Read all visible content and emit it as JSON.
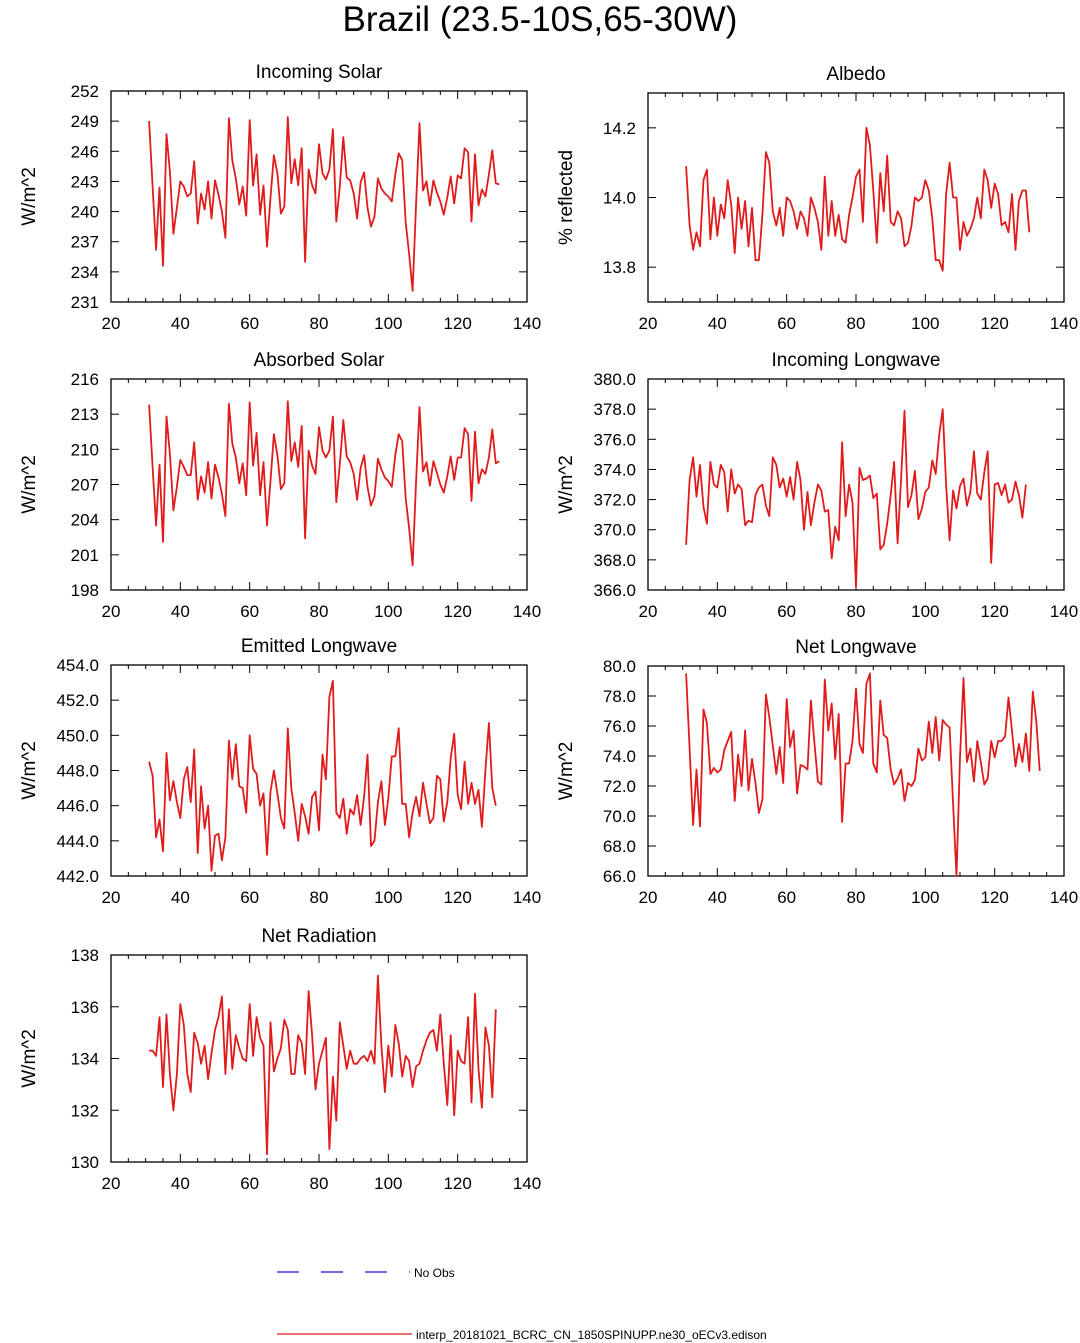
{
  "figure_title": "Brazil (23.5-10S,65-30W)",
  "legend": {
    "entries": [
      {
        "label": "No Obs",
        "color": "#1a1acc",
        "style": "dashed"
      },
      {
        "label": "interp_20181021_BCRC_CN_1850SPINUPP.ne30_oECv3.edison",
        "color": "#e01b1b",
        "style": "solid"
      }
    ]
  },
  "colors": {
    "series": "#e01b1b",
    "obs": "#1a1acc"
  },
  "chart_data": [
    {
      "type": "line",
      "title": "Incoming Solar",
      "xlabel": "",
      "ylabel": "W/m^2",
      "xlim": [
        20,
        140
      ],
      "ylim": [
        231,
        252
      ],
      "xticks": [
        20,
        40,
        60,
        80,
        100,
        120,
        140
      ],
      "yticks": [
        231,
        234,
        237,
        240,
        243,
        246,
        249,
        252
      ],
      "ytick_decimals": 0,
      "series": [
        {
          "name": "interp_20181021_BCRC_CN_1850SPINUPP.ne30_oECv3.edison",
          "x_start": 31,
          "values": [
            249.0,
            242.5,
            236.2,
            242.4,
            234.6,
            247.7,
            244.0,
            237.8,
            240.4,
            243.0,
            242.5,
            241.5,
            241.8,
            245.0,
            238.8,
            241.8,
            240.2,
            243.0,
            239.3,
            243.1,
            241.7,
            240.0,
            237.4,
            249.3,
            245.1,
            243.3,
            240.7,
            242.5,
            239.6,
            249.1,
            242.6,
            245.7,
            239.7,
            242.6,
            236.5,
            241.4,
            245.6,
            243.8,
            239.8,
            240.5,
            249.4,
            242.8,
            245.2,
            242.6,
            246.3,
            235.0,
            244.2,
            242.6,
            241.8,
            246.7,
            243.8,
            243.2,
            244.2,
            248.2,
            239.0,
            242.5,
            247.4,
            243.4,
            243.1,
            241.8,
            239.3,
            242.9,
            243.9,
            240.4,
            238.5,
            239.5,
            243.3,
            242.3,
            241.8,
            241.5,
            241.0,
            243.7,
            245.8,
            245.1,
            238.9,
            235.8,
            232.1,
            240.8,
            248.8,
            242.1,
            243.0,
            240.6,
            243.1,
            241.9,
            241.0,
            239.7,
            241.4,
            243.5,
            240.8,
            243.6,
            243.3,
            246.3,
            245.9,
            239.0,
            245.7,
            240.6,
            242.2,
            241.5,
            243.7,
            246.1,
            242.8,
            242.7
          ]
        }
      ]
    },
    {
      "type": "line",
      "title": "Albedo",
      "xlabel": "",
      "ylabel": "% reflected",
      "xlim": [
        20,
        140
      ],
      "ylim": [
        13.7,
        14.3
      ],
      "xticks": [
        20,
        40,
        60,
        80,
        100,
        120,
        140
      ],
      "yticks": [
        13.8,
        14.0,
        14.2
      ],
      "ytick_decimals": 1,
      "series": [
        {
          "name": "interp_20181021_BCRC_CN_1850SPINUPP.ne30_oECv3.edison",
          "x_start": 31,
          "values": [
            14.09,
            13.92,
            13.85,
            13.9,
            13.86,
            14.05,
            14.08,
            13.88,
            14.0,
            13.89,
            13.98,
            13.94,
            14.05,
            13.98,
            13.84,
            14.0,
            13.91,
            13.99,
            13.86,
            13.97,
            13.82,
            13.82,
            13.95,
            14.13,
            14.1,
            13.96,
            13.92,
            13.97,
            13.89,
            14.0,
            13.99,
            13.96,
            13.91,
            13.96,
            13.94,
            13.89,
            14.0,
            13.97,
            13.93,
            13.85,
            14.06,
            13.89,
            13.99,
            13.89,
            13.95,
            13.88,
            13.87,
            13.95,
            14.0,
            14.06,
            14.08,
            13.93,
            14.2,
            14.15,
            14.02,
            13.87,
            14.07,
            13.96,
            14.12,
            13.93,
            13.92,
            13.96,
            13.94,
            13.86,
            13.87,
            13.92,
            14.0,
            13.99,
            14.0,
            14.05,
            14.02,
            13.94,
            13.82,
            13.82,
            13.79,
            14.01,
            14.1,
            14.0,
            14.0,
            13.85,
            13.93,
            13.89,
            13.91,
            13.94,
            14.0,
            13.94,
            14.08,
            14.05,
            13.97,
            14.04,
            14.01,
            13.92,
            13.93,
            13.9,
            14.01,
            13.85,
            13.99,
            14.02,
            14.02,
            13.9
          ]
        }
      ]
    },
    {
      "type": "line",
      "title": "Absorbed Solar",
      "xlabel": "",
      "ylabel": "W/m^2",
      "xlim": [
        20,
        140
      ],
      "ylim": [
        198,
        216
      ],
      "xticks": [
        20,
        40,
        60,
        80,
        100,
        120,
        140
      ],
      "yticks": [
        198,
        201,
        204,
        207,
        210,
        213,
        216
      ],
      "ytick_decimals": 0,
      "series": [
        {
          "name": "interp_20181021_BCRC_CN_1850SPINUPP.ne30_oECv3.edison",
          "x_start": 31,
          "values": [
            213.8,
            208.5,
            203.5,
            208.7,
            202.1,
            212.8,
            209.6,
            204.8,
            206.8,
            209.1,
            208.5,
            207.8,
            207.8,
            210.6,
            205.7,
            207.7,
            206.3,
            208.9,
            205.8,
            208.7,
            207.6,
            206.2,
            204.3,
            213.9,
            210.5,
            209.3,
            207.1,
            208.8,
            206.1,
            214.0,
            208.6,
            211.4,
            206.1,
            208.9,
            203.5,
            207.3,
            211.3,
            209.5,
            206.6,
            207.1,
            214.1,
            209.0,
            210.6,
            208.5,
            212.0,
            202.4,
            209.9,
            208.6,
            207.9,
            211.9,
            209.9,
            209.3,
            209.9,
            212.8,
            205.5,
            208.7,
            212.5,
            209.4,
            208.9,
            207.9,
            205.7,
            208.4,
            209.5,
            206.8,
            205.2,
            206.0,
            209.2,
            208.3,
            207.6,
            207.3,
            206.8,
            209.5,
            211.3,
            210.7,
            205.8,
            203.3,
            200.1,
            207.3,
            213.6,
            208.1,
            208.9,
            206.9,
            209.0,
            208.0,
            207.0,
            206.3,
            207.7,
            209.4,
            207.4,
            209.3,
            209.3,
            211.8,
            211.3,
            205.6,
            211.5,
            207.1,
            208.3,
            207.9,
            209.3,
            211.7,
            208.8,
            209.0
          ]
        }
      ]
    },
    {
      "type": "line",
      "title": "Incoming Longwave",
      "xlabel": "",
      "ylabel": "W/m^2",
      "xlim": [
        20,
        140
      ],
      "ylim": [
        366,
        380
      ],
      "xticks": [
        20,
        40,
        60,
        80,
        100,
        120,
        140
      ],
      "yticks": [
        366,
        368,
        370,
        372,
        374,
        376,
        378,
        380
      ],
      "ytick_decimals": 1,
      "series": [
        {
          "name": "interp_20181021_BCRC_CN_1850SPINUPP.ne30_oECv3.edison",
          "x_start": 31,
          "values": [
            369.0,
            373.3,
            374.8,
            372.2,
            374.3,
            371.5,
            370.4,
            374.5,
            373.0,
            372.8,
            374.3,
            373.8,
            371.2,
            374.0,
            372.4,
            373.0,
            372.7,
            370.3,
            370.6,
            370.5,
            372.3,
            372.8,
            373.0,
            371.6,
            370.9,
            374.8,
            374.3,
            372.8,
            373.4,
            372.2,
            373.5,
            372.0,
            374.5,
            373.3,
            370.0,
            372.5,
            370.3,
            371.8,
            373.0,
            372.6,
            371.2,
            371.3,
            368.1,
            370.2,
            369.3,
            375.8,
            370.9,
            373.0,
            371.8,
            366.2,
            374.1,
            373.3,
            373.4,
            373.6,
            372.1,
            372.4,
            368.7,
            369.0,
            370.4,
            372.3,
            374.5,
            369.1,
            373.4,
            377.9,
            371.5,
            372.3,
            373.9,
            370.7,
            371.4,
            372.5,
            372.8,
            374.6,
            373.7,
            376.3,
            378.0,
            373.0,
            369.3,
            372.6,
            371.4,
            372.9,
            373.4,
            371.6,
            372.5,
            375.2,
            372.4,
            372.0,
            373.8,
            375.2,
            367.8,
            373.0,
            373.1,
            372.3,
            373.0,
            371.8,
            372.0,
            373.2,
            372.3,
            370.8,
            373.0
          ]
        }
      ]
    },
    {
      "type": "line",
      "title": "Emitted Longwave",
      "xlabel": "",
      "ylabel": "W/m^2",
      "xlim": [
        20,
        140
      ],
      "ylim": [
        442,
        454
      ],
      "xticks": [
        20,
        40,
        60,
        80,
        100,
        120,
        140
      ],
      "yticks": [
        442,
        444,
        446,
        448,
        450,
        452,
        454
      ],
      "ytick_decimals": 1,
      "series": [
        {
          "name": "interp_20181021_BCRC_CN_1850SPINUPP.ne30_oECv3.edison",
          "x_start": 31,
          "values": [
            448.5,
            447.7,
            444.2,
            445.2,
            443.4,
            449.0,
            446.3,
            447.4,
            446.2,
            445.3,
            447.5,
            448.2,
            446.2,
            449.2,
            443.3,
            447.1,
            444.7,
            446.0,
            442.3,
            444.3,
            444.4,
            442.9,
            444.2,
            449.7,
            447.5,
            449.5,
            447.1,
            447.0,
            445.6,
            450.0,
            448.1,
            447.8,
            446.0,
            446.7,
            443.2,
            446.8,
            448.0,
            446.7,
            445.3,
            444.7,
            450.4,
            447.0,
            445.6,
            444.0,
            446.1,
            445.4,
            444.4,
            446.5,
            446.8,
            444.6,
            448.9,
            447.5,
            452.2,
            453.1,
            445.6,
            445.3,
            446.4,
            444.4,
            445.8,
            445.5,
            446.6,
            444.9,
            446.5,
            448.9,
            443.7,
            444.0,
            446.2,
            447.4,
            444.9,
            446.4,
            448.8,
            448.8,
            450.4,
            446.1,
            446.1,
            444.2,
            445.6,
            446.5,
            445.4,
            447.3,
            446.1,
            445.0,
            445.3,
            447.7,
            447.5,
            445.1,
            446.2,
            448.7,
            450.1,
            446.6,
            445.8,
            448.5,
            446.1,
            447.3,
            446.1,
            446.9,
            444.8,
            448.0,
            450.7,
            447.0,
            446.0
          ]
        }
      ]
    },
    {
      "type": "line",
      "title": "Net Longwave",
      "xlabel": "",
      "ylabel": "W/m^2",
      "xlim": [
        20,
        140
      ],
      "ylim": [
        66,
        80
      ],
      "xticks": [
        20,
        40,
        60,
        80,
        100,
        120,
        140
      ],
      "yticks": [
        66,
        68,
        70,
        72,
        74,
        76,
        78,
        80
      ],
      "ytick_decimals": 1,
      "series": [
        {
          "name": "interp_20181021_BCRC_CN_1850SPINUPP.ne30_oECv3.edison",
          "x_start": 31,
          "values": [
            79.5,
            74.5,
            69.4,
            73.1,
            69.3,
            77.1,
            76.2,
            72.8,
            73.2,
            72.9,
            73.1,
            74.4,
            75.0,
            75.6,
            71.0,
            74.1,
            72.0,
            75.7,
            71.7,
            73.8,
            72.2,
            70.2,
            71.1,
            78.1,
            76.6,
            74.7,
            72.8,
            74.6,
            72.2,
            77.8,
            74.6,
            75.7,
            71.5,
            73.4,
            73.3,
            73.1,
            77.7,
            74.9,
            72.3,
            72.1,
            79.1,
            75.7,
            77.5,
            73.8,
            76.8,
            69.6,
            73.5,
            73.5,
            75.0,
            78.5,
            74.8,
            74.2,
            78.8,
            79.5,
            73.5,
            72.9,
            77.7,
            75.4,
            75.2,
            73.1,
            72.1,
            72.5,
            73.1,
            71.0,
            72.2,
            72.0,
            72.4,
            74.5,
            73.7,
            73.9,
            76.3,
            74.2,
            76.6,
            73.7,
            76.4,
            76.1,
            75.9,
            70.8,
            66.0,
            73.9,
            79.2,
            73.6,
            74.5,
            72.3,
            75.0,
            73.6,
            72.1,
            72.5,
            75.0,
            73.9,
            75.0,
            75.0,
            75.3,
            77.9,
            75.7,
            73.3,
            74.8,
            73.6,
            75.5,
            73.0,
            78.3,
            76.3,
            73.0
          ]
        }
      ]
    },
    {
      "type": "line",
      "title": "Net Radiation",
      "xlabel": "",
      "ylabel": "W/m^2",
      "xlim": [
        20,
        140
      ],
      "ylim": [
        130,
        138
      ],
      "xticks": [
        20,
        40,
        60,
        80,
        100,
        120,
        140
      ],
      "yticks": [
        130,
        132,
        134,
        136,
        138
      ],
      "ytick_decimals": 0,
      "series": [
        {
          "name": "interp_20181021_BCRC_CN_1850SPINUPP.ne30_oECv3.edison",
          "x_start": 31,
          "values": [
            134.3,
            134.3,
            134.1,
            135.6,
            132.9,
            135.7,
            133.4,
            132.0,
            133.4,
            136.1,
            135.3,
            133.4,
            132.7,
            135.0,
            134.6,
            133.8,
            134.5,
            133.2,
            134.2,
            135.1,
            135.6,
            136.4,
            133.4,
            135.9,
            133.6,
            134.9,
            134.4,
            134.0,
            133.9,
            136.1,
            134.1,
            135.6,
            134.8,
            134.5,
            130.3,
            135.4,
            133.5,
            134.0,
            134.4,
            135.5,
            135.1,
            133.4,
            133.4,
            134.9,
            134.6,
            133.4,
            136.6,
            134.9,
            132.8,
            133.8,
            134.3,
            134.8,
            130.5,
            133.3,
            131.6,
            135.4,
            134.5,
            133.6,
            134.3,
            133.8,
            133.8,
            134.0,
            134.1,
            133.9,
            134.3,
            133.8,
            137.2,
            134.5,
            132.7,
            134.5,
            133.3,
            135.3,
            134.6,
            133.3,
            134.1,
            133.9,
            132.9,
            133.7,
            133.8,
            134.3,
            134.7,
            135.0,
            135.1,
            134.3,
            135.7,
            133.8,
            132.2,
            134.9,
            131.8,
            134.3,
            133.9,
            133.8,
            135.6,
            132.3,
            136.5,
            133.6,
            132.1,
            135.2,
            134.5,
            132.5,
            135.9
          ]
        }
      ]
    }
  ]
}
